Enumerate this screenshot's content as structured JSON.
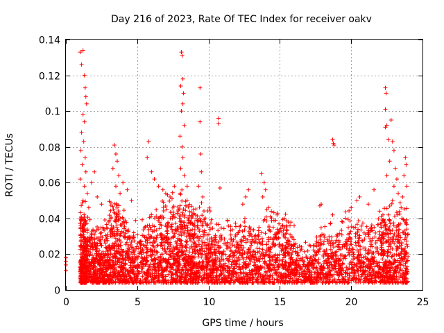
{
  "chart_data": {
    "type": "scatter",
    "title": "Day 216 of 2023, Rate Of TEC Index for receiver oakv",
    "xlabel": "GPS time / hours",
    "ylabel": "ROTI / TECUs",
    "xlim": [
      0,
      25
    ],
    "ylim": [
      0,
      0.14
    ],
    "xticks": [
      0,
      5,
      10,
      15,
      20,
      25
    ],
    "xtick_labels": [
      "0",
      "5",
      "10",
      "15",
      "20",
      "25"
    ],
    "yticks": [
      0,
      0.02,
      0.04,
      0.06,
      0.08,
      0.1,
      0.12,
      0.14
    ],
    "ytick_labels": [
      "0",
      "0.02",
      "0.04",
      "0.06",
      "0.08",
      "0.1",
      "0.12",
      "0.14"
    ],
    "grid": true,
    "marker": "plus",
    "series": [
      {
        "name": "ROTI",
        "color": "#ff0000",
        "points": [
          [
            0.0,
            0.011
          ],
          [
            0.0,
            0.014
          ],
          [
            0.0,
            0.016
          ],
          [
            0.0,
            0.018
          ],
          [
            1.0,
            0.133
          ],
          [
            1.1,
            0.126
          ],
          [
            1.2,
            0.134
          ],
          [
            1.3,
            0.12
          ],
          [
            1.35,
            0.113
          ],
          [
            1.4,
            0.108
          ],
          [
            1.45,
            0.104
          ],
          [
            1.2,
            0.098
          ],
          [
            1.3,
            0.094
          ],
          [
            1.1,
            0.088
          ],
          [
            1.25,
            0.083
          ],
          [
            1.05,
            0.078
          ],
          [
            1.35,
            0.074
          ],
          [
            1.15,
            0.07
          ],
          [
            1.4,
            0.066
          ],
          [
            1.0,
            0.062
          ],
          [
            1.3,
            0.058
          ],
          [
            1.5,
            0.054
          ],
          [
            1.2,
            0.05
          ],
          [
            1.6,
            0.046
          ],
          [
            1.8,
            0.06
          ],
          [
            2.0,
            0.066
          ],
          [
            2.2,
            0.052
          ],
          [
            2.5,
            0.048
          ],
          [
            3.4,
            0.081
          ],
          [
            3.5,
            0.076
          ],
          [
            3.6,
            0.072
          ],
          [
            3.3,
            0.068
          ],
          [
            3.7,
            0.064
          ],
          [
            3.5,
            0.058
          ],
          [
            3.8,
            0.054
          ],
          [
            4.0,
            0.06
          ],
          [
            4.3,
            0.056
          ],
          [
            4.6,
            0.05
          ],
          [
            5.8,
            0.083
          ],
          [
            5.7,
            0.074
          ],
          [
            6.0,
            0.066
          ],
          [
            6.2,
            0.062
          ],
          [
            6.5,
            0.058
          ],
          [
            6.8,
            0.056
          ],
          [
            7.0,
            0.054
          ],
          [
            7.3,
            0.052
          ],
          [
            7.6,
            0.058
          ],
          [
            8.1,
            0.133
          ],
          [
            8.15,
            0.131
          ],
          [
            8.2,
            0.118
          ],
          [
            8.05,
            0.114
          ],
          [
            8.25,
            0.11
          ],
          [
            8.2,
            0.104
          ],
          [
            8.1,
            0.1
          ],
          [
            8.3,
            0.092
          ],
          [
            8.0,
            0.086
          ],
          [
            8.15,
            0.08
          ],
          [
            8.2,
            0.074
          ],
          [
            8.05,
            0.068
          ],
          [
            8.3,
            0.064
          ],
          [
            8.5,
            0.058
          ],
          [
            8.0,
            0.054
          ],
          [
            9.4,
            0.113
          ],
          [
            9.4,
            0.094
          ],
          [
            9.45,
            0.076
          ],
          [
            9.5,
            0.066
          ],
          [
            9.3,
            0.058
          ],
          [
            9.6,
            0.052
          ],
          [
            10.7,
            0.096
          ],
          [
            10.7,
            0.093
          ],
          [
            10.8,
            0.057
          ],
          [
            12.6,
            0.052
          ],
          [
            12.4,
            0.048
          ],
          [
            12.8,
            0.056
          ],
          [
            13.7,
            0.065
          ],
          [
            13.9,
            0.06
          ],
          [
            14.0,
            0.056
          ],
          [
            13.8,
            0.052
          ],
          [
            14.2,
            0.046
          ],
          [
            14.4,
            0.044
          ],
          [
            14.8,
            0.042
          ],
          [
            15.3,
            0.04
          ],
          [
            15.6,
            0.038
          ],
          [
            16.0,
            0.036
          ],
          [
            17.8,
            0.047
          ],
          [
            17.9,
            0.048
          ],
          [
            18.7,
            0.084
          ],
          [
            18.75,
            0.082
          ],
          [
            18.8,
            0.081
          ],
          [
            18.7,
            0.042
          ],
          [
            19.4,
            0.038
          ],
          [
            20.0,
            0.046
          ],
          [
            20.4,
            0.05
          ],
          [
            20.6,
            0.052
          ],
          [
            21.2,
            0.048
          ],
          [
            21.6,
            0.056
          ],
          [
            22.4,
            0.113
          ],
          [
            22.45,
            0.11
          ],
          [
            22.4,
            0.101
          ],
          [
            22.5,
            0.092
          ],
          [
            22.4,
            0.091
          ],
          [
            22.8,
            0.095
          ],
          [
            22.6,
            0.084
          ],
          [
            22.9,
            0.083
          ],
          [
            23.0,
            0.078
          ],
          [
            22.7,
            0.072
          ],
          [
            23.1,
            0.068
          ],
          [
            22.5,
            0.064
          ],
          [
            23.2,
            0.062
          ],
          [
            23.0,
            0.058
          ],
          [
            23.3,
            0.054
          ],
          [
            22.9,
            0.05
          ],
          [
            23.5,
            0.046
          ],
          [
            23.8,
            0.074
          ],
          [
            23.85,
            0.07
          ],
          [
            23.7,
            0.064
          ],
          [
            23.9,
            0.058
          ],
          [
            23.6,
            0.052
          ]
        ],
        "generated_density": [
          [
            1.0,
            1.5,
            0.04,
            320
          ],
          [
            1.5,
            3.0,
            0.03,
            360
          ],
          [
            3.0,
            4.2,
            0.042,
            300
          ],
          [
            4.2,
            5.8,
            0.03,
            260
          ],
          [
            5.8,
            7.8,
            0.044,
            380
          ],
          [
            7.8,
            9.0,
            0.046,
            320
          ],
          [
            9.0,
            10.5,
            0.04,
            300
          ],
          [
            10.5,
            12.5,
            0.03,
            300
          ],
          [
            12.5,
            14.5,
            0.034,
            300
          ],
          [
            14.5,
            16.0,
            0.034,
            260
          ],
          [
            16.0,
            17.5,
            0.018,
            200
          ],
          [
            17.5,
            19.5,
            0.028,
            280
          ],
          [
            19.5,
            22.0,
            0.034,
            340
          ],
          [
            22.0,
            24.0,
            0.04,
            420
          ]
        ]
      }
    ]
  }
}
